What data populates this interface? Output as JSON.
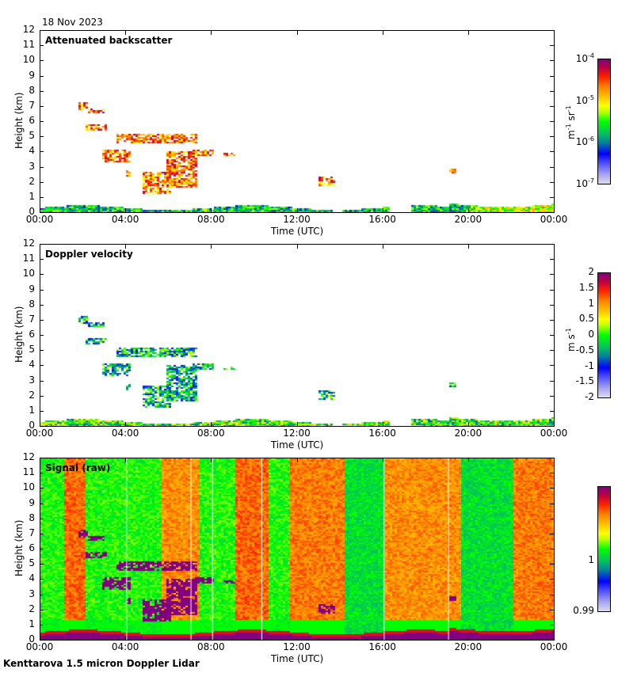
{
  "date": "18 Nov 2023",
  "footer": "Kenttarova 1.5 micron Doppler Lidar",
  "chart_data": [
    {
      "type": "heatmap",
      "title": "Attenuated backscatter",
      "xlabel": "Time (UTC)",
      "ylabel": "Height (km)",
      "x_ticks": [
        "00:00",
        "04:00",
        "08:00",
        "12:00",
        "16:00",
        "20:00",
        "00:00"
      ],
      "y_ticks": [
        "0",
        "1",
        "2",
        "3",
        "4",
        "5",
        "6",
        "7",
        "8",
        "9",
        "10",
        "11",
        "12"
      ],
      "xlim_hours": [
        0,
        24
      ],
      "ylim_km": [
        0,
        12
      ],
      "colorbar": {
        "scale": "log",
        "labels": [
          "10-7",
          "10-6",
          "10-5",
          "10-4"
        ],
        "units": "m-1 sr-1",
        "range": [
          1e-07,
          0.0001
        ]
      },
      "features": [
        {
          "desc": "boundary layer",
          "t": [
            0,
            24
          ],
          "h": [
            0,
            0.6
          ]
        },
        {
          "desc": "cloud 7 km",
          "t": [
            1.7,
            2.9
          ],
          "h": [
            6.6,
            7.4
          ]
        },
        {
          "desc": "cloud 5 km",
          "t": [
            4.0,
            7.2
          ],
          "h": [
            4.6,
            5.3
          ]
        },
        {
          "desc": "cloud 4 km",
          "t": [
            2.8,
            4.2
          ],
          "h": [
            3.3,
            4.3
          ]
        },
        {
          "desc": "cloud 2-3 km",
          "t": [
            4.7,
            7.3
          ],
          "h": [
            1.3,
            4.2
          ]
        },
        {
          "desc": "cloud 2.3 km",
          "t": [
            12.9,
            13.7
          ],
          "h": [
            1.9,
            2.5
          ]
        }
      ]
    },
    {
      "type": "heatmap",
      "title": "Doppler velocity",
      "xlabel": "Time (UTC)",
      "ylabel": "Height (km)",
      "x_ticks": [
        "00:00",
        "04:00",
        "08:00",
        "12:00",
        "16:00",
        "20:00",
        "00:00"
      ],
      "y_ticks": [
        "0",
        "1",
        "2",
        "3",
        "4",
        "5",
        "6",
        "7",
        "8",
        "9",
        "10",
        "11",
        "12"
      ],
      "xlim_hours": [
        0,
        24
      ],
      "ylim_km": [
        0,
        12
      ],
      "colorbar": {
        "scale": "linear",
        "labels": [
          "-2",
          "-1.5",
          "-1",
          "-0.5",
          "0",
          "0.5",
          "1",
          "1.5",
          "2"
        ],
        "units": "m s-1",
        "range": [
          -2,
          2
        ]
      }
    },
    {
      "type": "heatmap",
      "title": "Signal (raw)",
      "xlabel": "Time (UTC)",
      "ylabel": "Height (km)",
      "x_ticks": [
        "00:00",
        "04:00",
        "08:00",
        "12:00",
        "16:00",
        "20:00",
        "00:00"
      ],
      "y_ticks": [
        "0",
        "1",
        "2",
        "3",
        "4",
        "5",
        "6",
        "7",
        "8",
        "9",
        "10",
        "11",
        "12"
      ],
      "xlim_hours": [
        0,
        24
      ],
      "ylim_km": [
        0,
        12
      ],
      "colorbar": {
        "scale": "linear",
        "labels": [
          "0.99",
          "1"
        ],
        "range": [
          0.99,
          1.01
        ]
      }
    }
  ],
  "labels": {
    "xlabel": "Time (UTC)",
    "ylabel": "Height (km)",
    "unit_beta": "m",
    "unit_vel": "m s"
  }
}
